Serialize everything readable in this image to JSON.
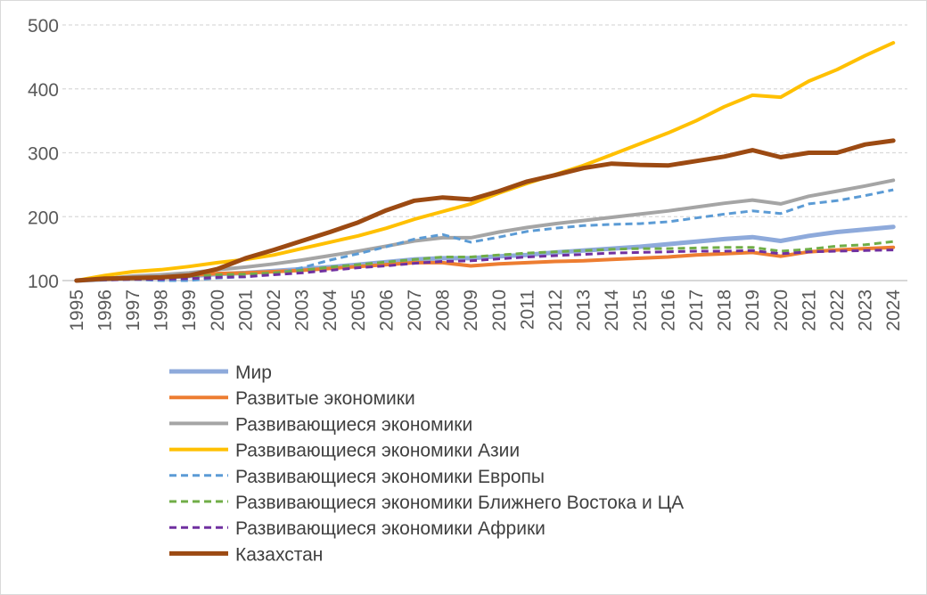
{
  "chart_data": {
    "type": "line",
    "title": "",
    "xlabel": "",
    "ylabel": "",
    "ylim": [
      100,
      500
    ],
    "yticks": [
      100,
      200,
      300,
      400,
      500
    ],
    "grid": true,
    "legend_position": "bottom",
    "x": [
      "1995",
      "1996",
      "1997",
      "1998",
      "1999",
      "2000",
      "2001",
      "2002",
      "2003",
      "2004",
      "2005",
      "2006",
      "2007",
      "2008",
      "2009",
      "2010",
      "2011",
      "2012",
      "2013",
      "2014",
      "2015",
      "2016",
      "2017",
      "2018",
      "2019",
      "2020",
      "2021",
      "2022",
      "2023",
      "2024"
    ],
    "series": [
      {
        "name": "Мир",
        "color": "#8eaadb",
        "dash": "solid",
        "width": 5,
        "values": [
          100,
          102,
          104,
          105,
          107,
          110,
          112,
          115,
          118,
          121,
          125,
          129,
          133,
          135,
          135,
          138,
          140,
          144,
          147,
          150,
          153,
          157,
          161,
          165,
          168,
          162,
          170,
          176,
          180,
          184
        ]
      },
      {
        "name": "Развитые экономики",
        "color": "#ed7d31",
        "dash": "solid",
        "width": 4,
        "values": [
          100,
          102,
          104,
          106,
          108,
          111,
          112,
          114,
          116,
          119,
          122,
          125,
          128,
          128,
          123,
          126,
          128,
          130,
          131,
          133,
          135,
          137,
          140,
          142,
          144,
          138,
          145,
          148,
          150,
          152
        ]
      },
      {
        "name": "Развивающиеся экономики",
        "color": "#a5a5a5",
        "dash": "solid",
        "width": 4,
        "values": [
          100,
          103,
          107,
          109,
          112,
          117,
          121,
          126,
          132,
          139,
          146,
          154,
          162,
          167,
          167,
          176,
          183,
          189,
          194,
          199,
          204,
          209,
          215,
          221,
          226,
          220,
          232,
          240,
          248,
          257
        ]
      },
      {
        "name": "Развивающиеся экономики Азии",
        "color": "#ffc000",
        "dash": "solid",
        "width": 4,
        "values": [
          100,
          108,
          114,
          117,
          122,
          128,
          133,
          140,
          150,
          160,
          170,
          182,
          196,
          208,
          220,
          237,
          252,
          266,
          280,
          297,
          314,
          331,
          350,
          372,
          390,
          387,
          412,
          430,
          452,
          472
        ]
      },
      {
        "name": "Развивающиеся экономики Европы",
        "color": "#5b9bd5",
        "dash": "dashed",
        "width": 3,
        "values": [
          100,
          101,
          102,
          100,
          100,
          104,
          106,
          110,
          120,
          132,
          142,
          153,
          165,
          172,
          160,
          168,
          177,
          182,
          186,
          188,
          189,
          192,
          198,
          204,
          209,
          205,
          220,
          225,
          233,
          242
        ]
      },
      {
        "name": "Развивающиеся экономики Ближнего Востока и ЦА",
        "color": "#70ad47",
        "dash": "dashed",
        "width": 3,
        "values": [
          100,
          101,
          103,
          104,
          106,
          109,
          110,
          112,
          116,
          121,
          125,
          129,
          133,
          137,
          137,
          140,
          143,
          145,
          147,
          149,
          150,
          150,
          151,
          152,
          152,
          146,
          149,
          154,
          156,
          161
        ]
      },
      {
        "name": "Развивающиеся экономики Африки",
        "color": "#7030a0",
        "dash": "dashed",
        "width": 3,
        "values": [
          100,
          101,
          102,
          102,
          103,
          105,
          106,
          109,
          112,
          116,
          120,
          123,
          127,
          130,
          131,
          134,
          137,
          139,
          141,
          143,
          144,
          145,
          146,
          146,
          147,
          142,
          145,
          146,
          147,
          148
        ]
      },
      {
        "name": "Казахстан",
        "color": "#9c4a12",
        "dash": "solid",
        "width": 5,
        "values": [
          100,
          103,
          104,
          105,
          108,
          118,
          135,
          148,
          162,
          176,
          191,
          210,
          225,
          230,
          227,
          240,
          255,
          265,
          276,
          283,
          281,
          280,
          287,
          294,
          304,
          293,
          300,
          300,
          313,
          319
        ]
      }
    ]
  }
}
